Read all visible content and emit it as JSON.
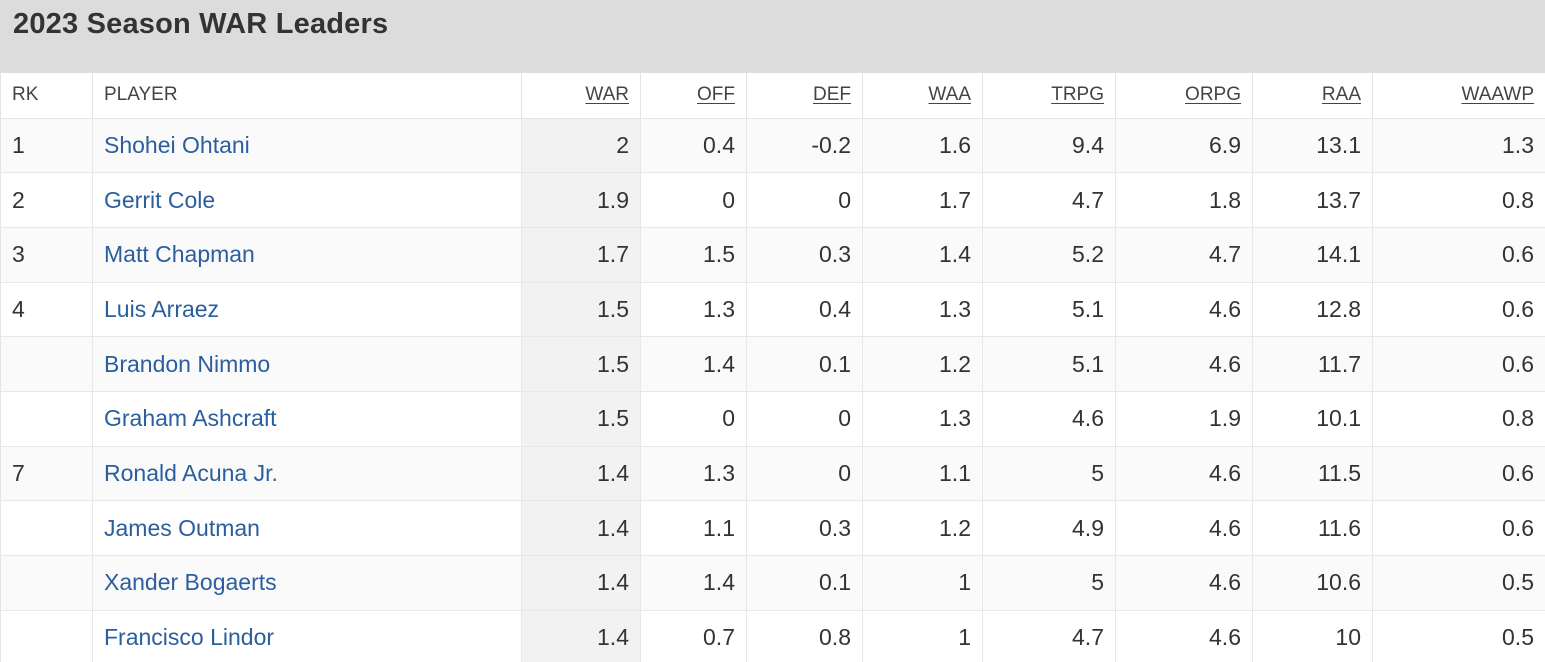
{
  "title": "2023 Season WAR Leaders",
  "columns": [
    "RK",
    "PLAYER",
    "WAR",
    "OFF",
    "DEF",
    "WAA",
    "TRPG",
    "ORPG",
    "RAA",
    "WAAWP"
  ],
  "rows": [
    {
      "rk": "1",
      "player": "Shohei Ohtani",
      "war": "2",
      "off": "0.4",
      "def": "-0.2",
      "waa": "1.6",
      "trpg": "9.4",
      "orpg": "6.9",
      "raa": "13.1",
      "waawp": "1.3"
    },
    {
      "rk": "2",
      "player": "Gerrit Cole",
      "war": "1.9",
      "off": "0",
      "def": "0",
      "waa": "1.7",
      "trpg": "4.7",
      "orpg": "1.8",
      "raa": "13.7",
      "waawp": "0.8"
    },
    {
      "rk": "3",
      "player": "Matt Chapman",
      "war": "1.7",
      "off": "1.5",
      "def": "0.3",
      "waa": "1.4",
      "trpg": "5.2",
      "orpg": "4.7",
      "raa": "14.1",
      "waawp": "0.6"
    },
    {
      "rk": "4",
      "player": "Luis Arraez",
      "war": "1.5",
      "off": "1.3",
      "def": "0.4",
      "waa": "1.3",
      "trpg": "5.1",
      "orpg": "4.6",
      "raa": "12.8",
      "waawp": "0.6"
    },
    {
      "rk": "",
      "player": "Brandon Nimmo",
      "war": "1.5",
      "off": "1.4",
      "def": "0.1",
      "waa": "1.2",
      "trpg": "5.1",
      "orpg": "4.6",
      "raa": "11.7",
      "waawp": "0.6"
    },
    {
      "rk": "",
      "player": "Graham Ashcraft",
      "war": "1.5",
      "off": "0",
      "def": "0",
      "waa": "1.3",
      "trpg": "4.6",
      "orpg": "1.9",
      "raa": "10.1",
      "waawp": "0.8"
    },
    {
      "rk": "7",
      "player": "Ronald Acuna Jr.",
      "war": "1.4",
      "off": "1.3",
      "def": "0",
      "waa": "1.1",
      "trpg": "5",
      "orpg": "4.6",
      "raa": "11.5",
      "waawp": "0.6"
    },
    {
      "rk": "",
      "player": "James Outman",
      "war": "1.4",
      "off": "1.1",
      "def": "0.3",
      "waa": "1.2",
      "trpg": "4.9",
      "orpg": "4.6",
      "raa": "11.6",
      "waawp": "0.6"
    },
    {
      "rk": "",
      "player": "Xander Bogaerts",
      "war": "1.4",
      "off": "1.4",
      "def": "0.1",
      "waa": "1",
      "trpg": "5",
      "orpg": "4.6",
      "raa": "10.6",
      "waawp": "0.5"
    },
    {
      "rk": "",
      "player": "Francisco Lindor",
      "war": "1.4",
      "off": "0.7",
      "def": "0.8",
      "waa": "1",
      "trpg": "4.7",
      "orpg": "4.6",
      "raa": "10",
      "waawp": "0.5"
    }
  ],
  "colors": {
    "title_bar_bg": "#dcdcdc",
    "link": "#2b5e9e",
    "sorted_column_bg": "#f2f2f2"
  }
}
